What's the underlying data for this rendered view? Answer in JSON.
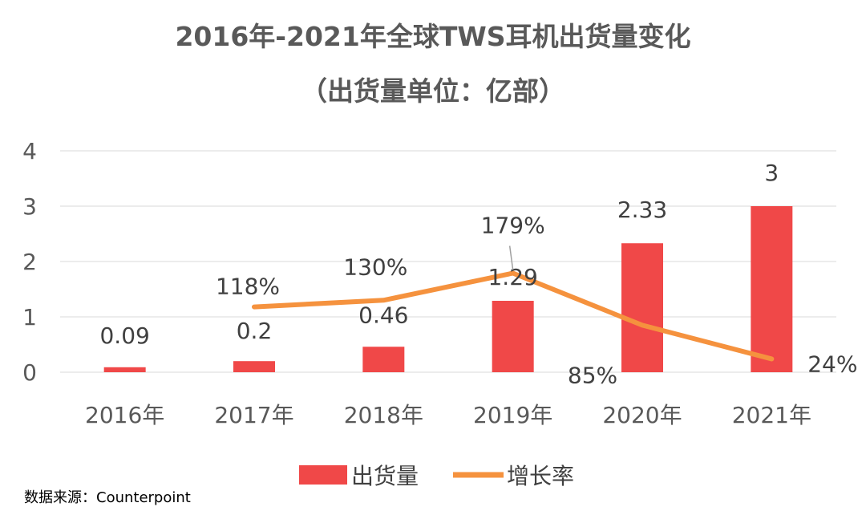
{
  "chart_data": {
    "type": "bar",
    "title": "2016年-2021年全球TWS耳机出货量变化",
    "subtitle": "（出货量单位：亿部）",
    "categories": [
      "2016年",
      "2017年",
      "2018年",
      "2019年",
      "2020年",
      "2021年"
    ],
    "series": [
      {
        "name": "出货量",
        "type": "bar",
        "color": "#f04848",
        "values": [
          0.09,
          0.2,
          0.46,
          1.29,
          2.33,
          3
        ],
        "labels": [
          "0.09",
          "0.2",
          "0.46",
          "1.29",
          "2.33",
          "3"
        ]
      },
      {
        "name": "增长率",
        "type": "line",
        "color": "#f5923e",
        "values": [
          null,
          1.18,
          1.3,
          1.79,
          0.85,
          0.24
        ],
        "labels": [
          null,
          "118%",
          "130%",
          "179%",
          "85%",
          "24%"
        ]
      }
    ],
    "y_ticks": [
      "0",
      "1",
      "2",
      "3",
      "4"
    ],
    "ylim": [
      0,
      4
    ],
    "grid": true,
    "legend": "bottom",
    "colors": {
      "title": "#595959",
      "grid": "#d9d9d9",
      "tick": "#595959",
      "label": "#404040"
    },
    "source": "数据来源：Counterpoint"
  }
}
